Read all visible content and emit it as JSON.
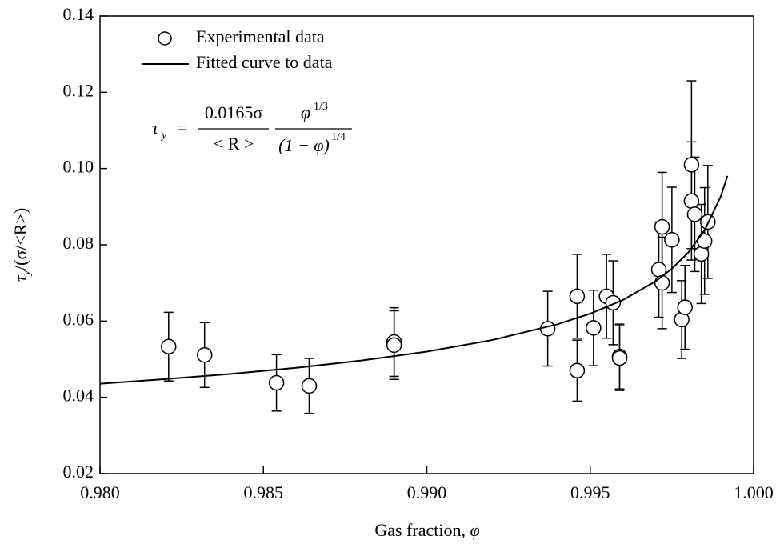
{
  "chart_data": {
    "type": "scatter",
    "x_label": "Gas fraction, ",
    "x_label_symbol": "φ",
    "y_label": {
      "symbol": "τ",
      "sub": "y",
      "rest": "/(σ/<R>)"
    },
    "legend": "top-left",
    "equation": {
      "lhs": "τ",
      "lhs_sub": "y",
      "eq": "=",
      "num1": "0.0165σ",
      "den1": "< R >",
      "num2": "φ",
      "num2_sup": "1/3",
      "den2": "(1 − φ)",
      "den2_sup": "1/4"
    },
    "series": [
      {
        "name": "Experimental data",
        "color": "#000000",
        "marker": "circle",
        "x": [
          0.9821,
          0.9832,
          0.9854,
          0.9864,
          0.989,
          0.989,
          0.9937,
          0.9946,
          0.9946,
          0.9951,
          0.9955,
          0.9957,
          0.9959,
          0.9959,
          0.9971,
          0.9972,
          0.9972,
          0.9975,
          0.9978,
          0.9979,
          0.9981,
          0.9981,
          0.9982,
          0.9984,
          0.9985,
          0.9986
        ],
        "values": [
          0.0533,
          0.0511,
          0.0438,
          0.043,
          0.0545,
          0.0537,
          0.058,
          0.0665,
          0.047,
          0.0582,
          0.0665,
          0.0648,
          0.0507,
          0.0503,
          0.0735,
          0.0847,
          0.07,
          0.0813,
          0.0604,
          0.0636,
          0.101,
          0.0915,
          0.088,
          0.0776,
          0.081,
          0.086
        ],
        "errors": [
          0.009,
          0.0085,
          0.0074,
          0.0072,
          0.009,
          0.009,
          0.0098,
          0.011,
          0.008,
          0.0099,
          0.011,
          0.011,
          0.0085,
          0.0085,
          0.0125,
          0.0143,
          0.012,
          0.0138,
          0.0102,
          0.011,
          0.022,
          0.0155,
          0.015,
          0.013,
          0.014,
          0.0148
        ]
      },
      {
        "name": "Fitted curve to data",
        "color": "#000000",
        "marker": "line",
        "x": [
          0.98,
          0.982,
          0.984,
          0.986,
          0.988,
          0.99,
          0.992,
          0.994,
          0.995,
          0.996,
          0.997,
          0.9975,
          0.998,
          0.9985,
          0.999,
          0.9992
        ],
        "values": [
          0.04358,
          0.04478,
          0.04615,
          0.04774,
          0.04965,
          0.052,
          0.05502,
          0.05917,
          0.06195,
          0.06552,
          0.07043,
          0.07373,
          0.07797,
          0.0838,
          0.09276,
          0.09808
        ]
      }
    ],
    "xlim": [
      0.98,
      1.0
    ],
    "ylim": [
      0.02,
      0.14
    ],
    "xticks": [
      {
        "value": 0.98,
        "label": "0.980"
      },
      0.985,
      {
        "value": 0.99,
        "label": "0.990"
      },
      0.995,
      {
        "value": 1.0,
        "label": "1.000"
      }
    ],
    "yticks": [
      0.02,
      0.04,
      0.06,
      0.08,
      {
        "value": 0.1,
        "label": "0.10"
      },
      0.12,
      0.14
    ],
    "grid": false
  }
}
